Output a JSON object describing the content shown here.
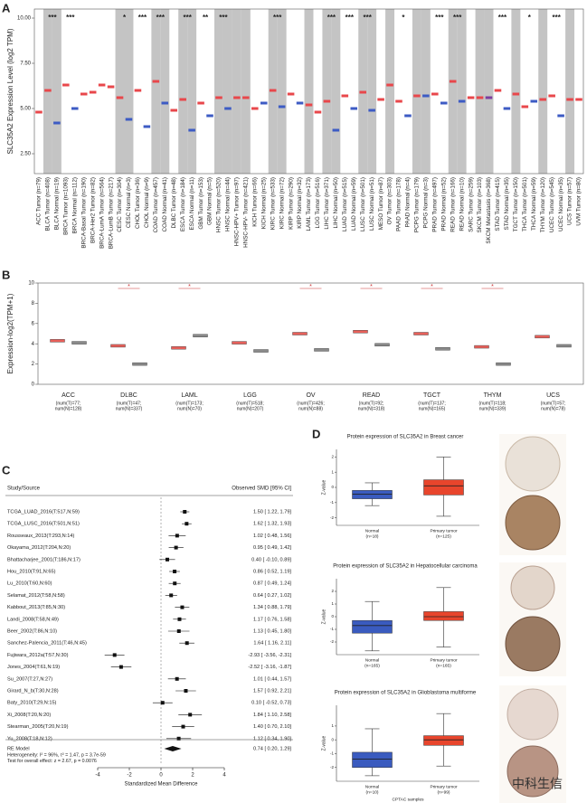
{
  "chart_data": [
    {
      "type": "box",
      "panel": "A",
      "ylabel": "SLC35A2 Expression Level (log2 TPM)",
      "ylim": [
        1.4,
        10.5
      ],
      "yticks": [
        {
          "value": 2.5,
          "label": "2.50"
        },
        {
          "value": 5,
          "label": "5.00"
        },
        {
          "value": 7.5,
          "label": "7.50"
        },
        {
          "value": 10,
          "label": "10.00"
        }
      ],
      "palette": {
        "Tumor": "#e8474b",
        "Normal": "#3d5bc4",
        "Metastasis": "#7b3fa0"
      },
      "categories": [
        "ACC Tumor (n=79)",
        "BLCA Tumor (n=408)",
        "BLCA Normal (n=19)",
        "BRCA Tumor (n=1093)",
        "BRCA Normal (n=112)",
        "BRCA-Basal Tumor (n=190)",
        "BRCA-Her2 Tumor (n=82)",
        "BRCA-LumA Tumor (n=564)",
        "BRCA-LumB Tumor (n=217)",
        "CESC Tumor (n=304)",
        "CESC Normal (n=3)",
        "CHOL Tumor (n=36)",
        "CHOL Normal (n=9)",
        "COAD Tumor (n=457)",
        "COAD Normal (n=41)",
        "DLBC Tumor (n=48)",
        "ESCA Tumor (n=184)",
        "ESCA Normal (n=11)",
        "GBM Tumor (n=153)",
        "GBM Normal (n=5)",
        "HNSC Tumor (n=520)",
        "HNSC Normal (n=44)",
        "HNSC-HPV+ Tumor (n=97)",
        "HNSC-HPV- Tumor (n=421)",
        "KICH Tumor (n=66)",
        "KICH Normal (n=25)",
        "KIRC Tumor (n=533)",
        "KIRC Normal (n=72)",
        "KIRP Tumor (n=290)",
        "KIRP Normal (n=32)",
        "LAML Tumor (n=173)",
        "LGG Tumor (n=516)",
        "LIHC Tumor (n=371)",
        "LIHC Normal (n=50)",
        "LUAD Tumor (n=515)",
        "LUAD Normal (n=59)",
        "LUSC Tumor (n=501)",
        "LUSC Normal (n=51)",
        "MESO Tumor (n=87)",
        "OV Tumor (n=303)",
        "PAAD Tumor (n=178)",
        "PAAD Normal (n=4)",
        "PCPG Tumor (n=179)",
        "PCPG Normal (n=3)",
        "PRAD Tumor (n=497)",
        "PRAD Normal (n=52)",
        "READ Tumor (n=166)",
        "READ Normal (n=10)",
        "SARC Tumor (n=259)",
        "SKCM Tumor (n=103)",
        "SKCM Metastasis (n=368)",
        "STAD Tumor (n=415)",
        "STAD Normal (n=35)",
        "TGCT Tumor (n=150)",
        "THCA Tumor (n=501)",
        "THCA Normal (n=59)",
        "THYM Tumor (n=120)",
        "UCEC Tumor (n=545)",
        "UCEC Normal (n=35)",
        "UCS Tumor (n=57)",
        "UVM Tumor (n=80)"
      ],
      "values": [
        4.8,
        6.0,
        4.2,
        6.3,
        5.0,
        5.8,
        5.9,
        6.3,
        6.2,
        5.6,
        4.4,
        6.0,
        4.0,
        6.5,
        5.3,
        4.9,
        5.5,
        3.8,
        5.3,
        4.6,
        5.6,
        5.0,
        5.6,
        5.6,
        5.0,
        5.3,
        6.0,
        5.1,
        5.8,
        5.3,
        5.2,
        4.8,
        5.4,
        3.8,
        5.7,
        5.0,
        5.9,
        4.9,
        5.5,
        6.3,
        5.4,
        4.6,
        5.7,
        5.7,
        5.8,
        5.3,
        6.5,
        5.4,
        5.6,
        5.6,
        5.6,
        6.0,
        5.0,
        5.8,
        5.1,
        5.4,
        5.5,
        5.7,
        4.6,
        5.5,
        5.5
      ],
      "significance": [
        null,
        "***",
        null,
        "***",
        null,
        null,
        null,
        null,
        null,
        "*",
        null,
        "***",
        null,
        "***",
        null,
        null,
        "***",
        null,
        "**",
        null,
        "***",
        null,
        null,
        null,
        null,
        null,
        "***",
        null,
        null,
        null,
        null,
        null,
        "***",
        null,
        "***",
        null,
        "***",
        null,
        null,
        null,
        "*",
        null,
        null,
        null,
        "***",
        null,
        "***",
        null,
        null,
        null,
        null,
        "***",
        null,
        null,
        "*",
        null,
        null,
        "***",
        null,
        null,
        null
      ]
    },
    {
      "type": "box",
      "panel": "B",
      "ylabel": "Expression-log2(TPM+1)",
      "ylim": [
        0,
        10
      ],
      "yticks": [
        0,
        2,
        4,
        6,
        8,
        10
      ],
      "categories": [
        "ACC",
        "DLBC",
        "LAML",
        "LGG",
        "OV",
        "READ",
        "TGCT",
        "THYM",
        "UCS"
      ],
      "sublabels": [
        [
          "(num(T)=77;",
          "num(N)=128)"
        ],
        [
          "(num(T)=47;",
          "num(N)=337)"
        ],
        [
          "(num(T)=173;",
          "num(N)=70)"
        ],
        [
          "(num(T)=518;",
          "num(N)=207)"
        ],
        [
          "(num(T)=426;",
          "num(N)=88)"
        ],
        [
          "(num(T)=92;",
          "num(N)=318)"
        ],
        [
          "(num(T)=137;",
          "num(N)=165)"
        ],
        [
          "(num(T)=118;",
          "num(N)=339)"
        ],
        [
          "(num(T)=57;",
          "num(N)=78)"
        ]
      ],
      "series": [
        {
          "color": "#e8605a",
          "values": [
            4.3,
            3.8,
            3.6,
            4.1,
            5.0,
            5.2,
            5.0,
            3.7,
            4.7
          ]
        },
        {
          "color": "#8a8a8a",
          "values": [
            4.1,
            2.0,
            4.8,
            3.3,
            3.4,
            3.9,
            3.5,
            2.0,
            3.8
          ]
        }
      ],
      "significance": [
        null,
        "*",
        "*",
        null,
        "*",
        "*",
        "*",
        "*",
        null
      ]
    },
    {
      "type": "forest",
      "panel": "C",
      "header": [
        "Study/Source",
        "Observed SMD [95% CI]"
      ],
      "xlabel": "Standardized Mean Difference",
      "xlim": [
        -4,
        4
      ],
      "xticks": [
        -4,
        -2,
        0,
        2,
        4
      ],
      "studies": [
        "TCGA_LUAD_2016(T:517,N:59)",
        "TCGA_LUSC_2016(T:501,N:51)",
        "Rousseaux_2013(T:293,N:14)",
        "Okayama_2012(T:204,N:20)",
        "Bhattacharjee_2001(T:186,N:17)",
        "Hou_2010(T:91,N:65)",
        "Lu_2010(T:60,N:60)",
        "Selamat_2012(T:58,N:58)",
        "Kabbout_2013(T:85,N:30)",
        "Landi_2008(T:58,N:49)",
        "Beer_2002(T:86,N:10)",
        "Sanchez-Palencia_2011(T:46,N:45)",
        "Fujiwara_2012a(T:57,N:30)",
        "Jones_2004(T:61,N:19)",
        "Su_2007(T:27,N:27)",
        "Girard_N_b(T:30,N:28)",
        "Baty_2010(T:29,N:15)",
        "Xi_2008(T:20,N:20)",
        "Stearman_2005(T:20,N:19)",
        "Yu_2008(T:18,N:12)"
      ],
      "values": [
        1.5,
        1.62,
        1.02,
        0.95,
        0.4,
        0.86,
        0.87,
        0.64,
        1.34,
        1.17,
        1.13,
        1.64,
        -2.93,
        -2.52,
        1.01,
        1.57,
        0.1,
        1.84,
        1.4,
        1.12
      ],
      "lower": [
        1.22,
        1.32,
        0.48,
        0.49,
        -0.1,
        0.52,
        0.49,
        0.27,
        0.88,
        0.76,
        0.45,
        1.16,
        -3.56,
        -3.16,
        0.44,
        0.92,
        -0.52,
        1.1,
        0.7,
        0.34
      ],
      "upper": [
        1.79,
        1.93,
        1.56,
        1.42,
        0.89,
        1.19,
        1.24,
        1.02,
        1.79,
        1.58,
        1.8,
        2.11,
        -2.31,
        -1.87,
        1.57,
        2.21,
        0.73,
        2.58,
        2.1,
        1.9
      ],
      "value_labels": [
        "1.50 [ 1.22, 1.79]",
        "1.62 [ 1.32, 1.93]",
        "1.02 [ 0.48, 1.56]",
        "0.95 [ 0.49, 1.42]",
        "0.40 [ -0.10, 0.89]",
        "0.86 [ 0.52, 1.19]",
        "0.87 [ 0.49, 1.24]",
        "0.64 [ 0.27, 1.02]",
        "1.34 [ 0.88, 1.79]",
        "1.17 [ 0.76, 1.58]",
        "1.13 [ 0.45, 1.80]",
        "1.64 [ 1.16, 2.11]",
        "-2.93 [ -3.56, -2.31]",
        "-2.52 [ -3.16, -1.87]",
        "1.01 [ 0.44, 1.57]",
        "1.57 [ 0.92, 2.21]",
        "0.10 [ -0.52, 0.73]",
        "1.84 [ 1.10, 2.58]",
        "1.40 [ 0.70, 2.10]",
        "1.12 [ 0.34, 1.90]"
      ],
      "summary": {
        "name": "RE Model",
        "value": 0.74,
        "low": 0.2,
        "high": 1.29,
        "value_label": "0.74 [ 0.20, 1.29]"
      },
      "notes": [
        "Heterogeneity: I² = 96%, τ² = 1.47, p = 3.7e-59",
        "Test for overall effect: z = 2.67, p = 0.0076"
      ]
    },
    {
      "type": "boxstats",
      "panel": "D",
      "title": "Protein expression of SLC35A2 in Breast cancer",
      "ylabel": "Z-value",
      "ylim": [
        -2.5,
        2.5
      ],
      "yticks": [
        -2,
        -1,
        0,
        1,
        2
      ],
      "categories": [
        [
          "Normal",
          "(n=18)"
        ],
        [
          "Primary tumor",
          "(n=125)"
        ]
      ],
      "colors": [
        "#3a5bbf",
        "#e8452c"
      ],
      "boxes": [
        {
          "min": -1.2,
          "q1": -0.75,
          "median": -0.45,
          "q3": -0.2,
          "max": 0.3
        },
        {
          "min": -1.9,
          "q1": -0.5,
          "median": 0.1,
          "q3": 0.5,
          "max": 2.0
        }
      ]
    },
    {
      "type": "boxstats",
      "title": "Protein expression of SLC35A2 in Hepatocellular carcinoma",
      "ylabel": "Z-value",
      "ylim": [
        -3,
        3
      ],
      "yticks": [
        -2,
        -1,
        0,
        1,
        2
      ],
      "categories": [
        [
          "Normal",
          "(n=165)"
        ],
        [
          "Primary tumor",
          "(n=165)"
        ]
      ],
      "colors": [
        "#3a5bbf",
        "#e8452c"
      ],
      "boxes": [
        {
          "min": -2.7,
          "q1": -1.3,
          "median": -0.7,
          "q3": -0.3,
          "max": 1.2
        },
        {
          "min": -2.4,
          "q1": -0.3,
          "median": 0.0,
          "q3": 0.4,
          "max": 2.3
        }
      ]
    },
    {
      "type": "boxstats",
      "title": "Protein expression of SLC35A2 in Glioblastoma multiforme",
      "ylabel": "Z-value",
      "xlabel": "CPTAC samples",
      "ylim": [
        -3,
        2.5
      ],
      "yticks": [
        -2,
        -1,
        0,
        1
      ],
      "categories": [
        [
          "Normal",
          "(n=10)"
        ],
        [
          "Primary tumor",
          "(n=99)"
        ]
      ],
      "colors": [
        "#3a5bbf",
        "#e8452c"
      ],
      "boxes": [
        {
          "min": -2.6,
          "q1": -2.0,
          "median": -1.4,
          "q3": -0.9,
          "max": 0.8
        },
        {
          "min": -1.9,
          "q1": -0.4,
          "median": 0.0,
          "q3": 0.3,
          "max": 1.9
        }
      ]
    }
  ],
  "watermark": "中科生信"
}
